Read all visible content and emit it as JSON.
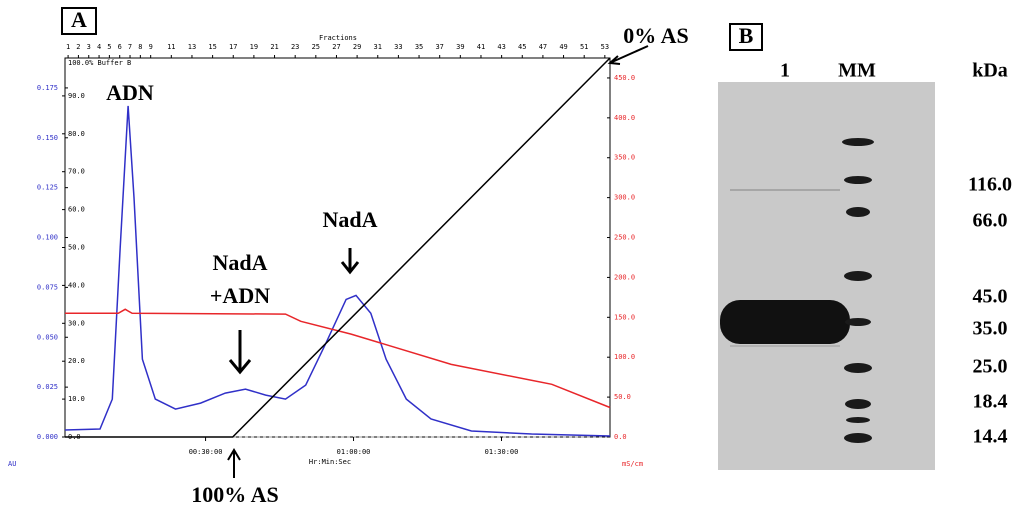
{
  "panels": [
    "A",
    "B"
  ],
  "chart_data": {
    "type": "line",
    "top_axis_label": "Fractions",
    "x_label": "Hr:Min:Sec",
    "y_label": "AU",
    "y2_label": "mS/cm",
    "xlim": [
      1.5,
      112
    ],
    "xticks": [
      {
        "value": 30,
        "label": "00:30:00"
      },
      {
        "value": 60,
        "label": "01:00:00"
      },
      {
        "value": 90,
        "label": "01:30:00"
      }
    ],
    "x2lim": [
      0.7,
      53.5
    ],
    "x2ticks": [
      1,
      2,
      3,
      4,
      5,
      6,
      7,
      8,
      9,
      11,
      13,
      15,
      17,
      19,
      21,
      23,
      25,
      27,
      29,
      31,
      33,
      35,
      37,
      39,
      41,
      43,
      45,
      47,
      49,
      51,
      53
    ],
    "ylim": [
      0,
      0.19
    ],
    "yticks": [
      {
        "value": 0,
        "label": "0.000"
      },
      {
        "value": 0.025,
        "label": "0.025"
      },
      {
        "value": 0.05,
        "label": "0.050"
      },
      {
        "value": 0.075,
        "label": "0.075"
      },
      {
        "value": 0.1,
        "label": "0.100"
      },
      {
        "value": 0.125,
        "label": "0.125"
      },
      {
        "value": 0.15,
        "label": "0.150"
      },
      {
        "value": 0.175,
        "label": "0.175"
      }
    ],
    "y3lim": [
      0,
      100
    ],
    "y3ticks": [
      {
        "value": 0,
        "label": "0.0"
      },
      {
        "value": 10,
        "label": "10.0"
      },
      {
        "value": 20,
        "label": "20.0"
      },
      {
        "value": 30,
        "label": "30.0"
      },
      {
        "value": 40,
        "label": "40.0"
      },
      {
        "value": 50,
        "label": "50.0"
      },
      {
        "value": 60,
        "label": "60.0"
      },
      {
        "value": 70,
        "label": "70.0"
      },
      {
        "value": 80,
        "label": "80.0"
      },
      {
        "value": 90,
        "label": "90.0"
      }
    ],
    "y2lim": [
      0,
      475
    ],
    "y2ticks": [
      {
        "value": 0,
        "label": "0.0"
      },
      {
        "value": 50,
        "label": "50.0"
      },
      {
        "value": 100,
        "label": "100.0"
      },
      {
        "value": 150,
        "label": "150.0"
      },
      {
        "value": 200,
        "label": "200.0"
      },
      {
        "value": 250,
        "label": "250.0"
      },
      {
        "value": 300,
        "label": "300.0"
      },
      {
        "value": 350,
        "label": "350.0"
      },
      {
        "value": 400,
        "label": "400.0"
      },
      {
        "value": 450,
        "label": "450.0"
      }
    ],
    "series": [
      {
        "color": "#3030c8",
        "axis": "y",
        "x": [
          1.5,
          8.6,
          11.1,
          12.7,
          14.3,
          15.5,
          17.2,
          19.8,
          23.9,
          29.0,
          34.0,
          38.1,
          42.2,
          46.2,
          50.3,
          54.4,
          58.5,
          60.5,
          63.5,
          66.6,
          70.7,
          75.7,
          83.9,
          96.1,
          112
        ],
        "values": [
          0.0035,
          0.004,
          0.019,
          0.095,
          0.166,
          0.12,
          0.039,
          0.019,
          0.014,
          0.017,
          0.022,
          0.024,
          0.021,
          0.019,
          0.026,
          0.047,
          0.069,
          0.071,
          0.062,
          0.039,
          0.019,
          0.009,
          0.003,
          0.0015,
          0.0005
        ]
      },
      {
        "color": "#e8262a",
        "axis": "y2",
        "x": [
          1.5,
          12.3,
          13.7,
          15.1,
          46.2,
          49.3,
          59.5,
          79.8,
          100.2,
          112
        ],
        "values": [
          155,
          155,
          160,
          155,
          154,
          145,
          129,
          91,
          66,
          37
        ]
      },
      {
        "name": "100.0% Buffer B",
        "color": "#000000",
        "axis": "y3",
        "x": [
          1.5,
          35.5,
          112
        ],
        "values": [
          0,
          0,
          100
        ]
      }
    ],
    "annotations": [
      "ADN",
      "NadA",
      "+ADN",
      "NadA",
      "0% AS",
      "100% AS"
    ]
  },
  "gel": {
    "lanes": [
      "1",
      "MM"
    ],
    "unit": "kDa",
    "markers": [
      "116.0",
      "66.0",
      "45.0",
      "35.0",
      "25.0",
      "18.4",
      "14.4"
    ]
  }
}
